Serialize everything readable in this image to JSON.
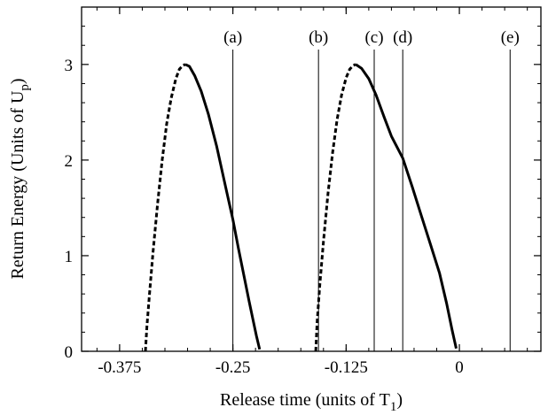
{
  "chart_data": {
    "type": "line",
    "xlabel_main": "Release time (units of T",
    "xlabel_sub": "1",
    "xlabel_end": ")",
    "ylabel_main": "Return Energy (Units of U",
    "ylabel_sub": "p",
    "ylabel_end": ")",
    "xlim": [
      -0.417,
      0.09
    ],
    "ylim": [
      0,
      3.6
    ],
    "x_ticks": [
      -0.375,
      -0.25,
      -0.125,
      0
    ],
    "x_tick_labels": [
      "-0.375",
      "-0.25",
      "-0.125",
      "0"
    ],
    "y_ticks": [
      0,
      1,
      2,
      3
    ],
    "y_tick_labels": [
      "0",
      "1",
      "2",
      "3"
    ],
    "grid": false,
    "vertical_lines": [
      {
        "label": "(a)",
        "x": -0.25
      },
      {
        "label": "(b)",
        "x": -0.1555
      },
      {
        "label": "(c)",
        "x": -0.094
      },
      {
        "label": "(d)",
        "x": -0.0625
      },
      {
        "label": "(e)",
        "x": 0.056
      }
    ],
    "series": [
      {
        "style": "dashed",
        "x": [
          -0.3465,
          -0.345,
          -0.342,
          -0.338,
          -0.333,
          -0.328,
          -0.323,
          -0.318,
          -0.313,
          -0.309,
          -0.305,
          -0.3025
        ],
        "y": [
          0.0,
          0.25,
          0.6,
          1.05,
          1.55,
          2.0,
          2.38,
          2.65,
          2.85,
          2.95,
          2.99,
          3.0
        ]
      },
      {
        "style": "solid",
        "x": [
          -0.3025,
          -0.298,
          -0.292,
          -0.285,
          -0.277,
          -0.268,
          -0.258,
          -0.25,
          -0.244,
          -0.238,
          -0.232,
          -0.228,
          -0.224,
          -0.2205
        ],
        "y": [
          3.0,
          2.98,
          2.88,
          2.72,
          2.48,
          2.15,
          1.72,
          1.38,
          1.08,
          0.8,
          0.52,
          0.34,
          0.16,
          0.02
        ]
      },
      {
        "style": "dashed",
        "x": [
          -0.1585,
          -0.157,
          -0.154,
          -0.15,
          -0.145,
          -0.14,
          -0.135,
          -0.13,
          -0.125,
          -0.121,
          -0.117,
          -0.1145
        ],
        "y": [
          0.0,
          0.3,
          0.7,
          1.15,
          1.65,
          2.07,
          2.42,
          2.68,
          2.86,
          2.95,
          2.99,
          3.0
        ]
      },
      {
        "style": "solid",
        "x": [
          -0.1145,
          -0.108,
          -0.1,
          -0.092,
          -0.083,
          -0.075,
          -0.0625,
          -0.052,
          -0.042,
          -0.032,
          -0.022,
          -0.014,
          -0.008,
          -0.0035
        ],
        "y": [
          3.0,
          2.96,
          2.85,
          2.68,
          2.45,
          2.25,
          2.02,
          1.72,
          1.42,
          1.12,
          0.82,
          0.5,
          0.22,
          0.03
        ]
      }
    ]
  }
}
